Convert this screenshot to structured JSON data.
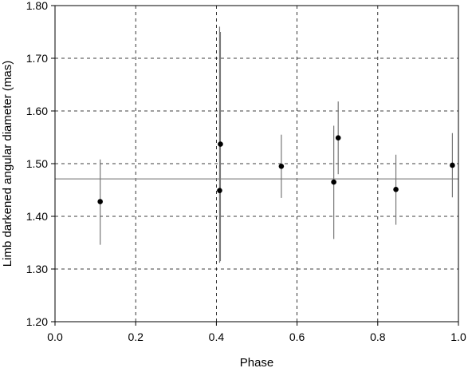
{
  "chart_data": {
    "type": "scatter",
    "xlabel": "Phase",
    "ylabel": "Limb darkened angular diameter (mas)",
    "xlim": [
      0.0,
      1.0
    ],
    "ylim": [
      1.2,
      1.8
    ],
    "xticks": [
      0.0,
      0.2,
      0.4,
      0.6,
      0.8,
      1.0
    ],
    "xtick_labels": [
      "0.0",
      "0.2",
      "0.4",
      "0.6",
      "0.8",
      "1.0"
    ],
    "yticks": [
      1.2,
      1.3,
      1.4,
      1.5,
      1.6,
      1.7,
      1.8
    ],
    "ytick_labels": [
      "1.20",
      "1.30",
      "1.40",
      "1.50",
      "1.60",
      "1.70",
      "1.80"
    ],
    "grid": true,
    "reference_line_y": 1.471,
    "points": [
      {
        "x": 0.112,
        "y": 1.428,
        "err_low": 1.346,
        "err_high": 1.508
      },
      {
        "x": 0.408,
        "y": 1.449,
        "err_low": 1.312,
        "err_high": 1.76
      },
      {
        "x": 0.41,
        "y": 1.537,
        "err_low": 1.315,
        "err_high": 1.75
      },
      {
        "x": 0.561,
        "y": 1.495,
        "err_low": 1.435,
        "err_high": 1.555
      },
      {
        "x": 0.691,
        "y": 1.465,
        "err_low": 1.357,
        "err_high": 1.572
      },
      {
        "x": 0.702,
        "y": 1.549,
        "err_low": 1.48,
        "err_high": 1.618
      },
      {
        "x": 0.845,
        "y": 1.451,
        "err_low": 1.384,
        "err_high": 1.517
      },
      {
        "x": 0.985,
        "y": 1.497,
        "err_low": 1.436,
        "err_high": 1.558
      }
    ]
  }
}
